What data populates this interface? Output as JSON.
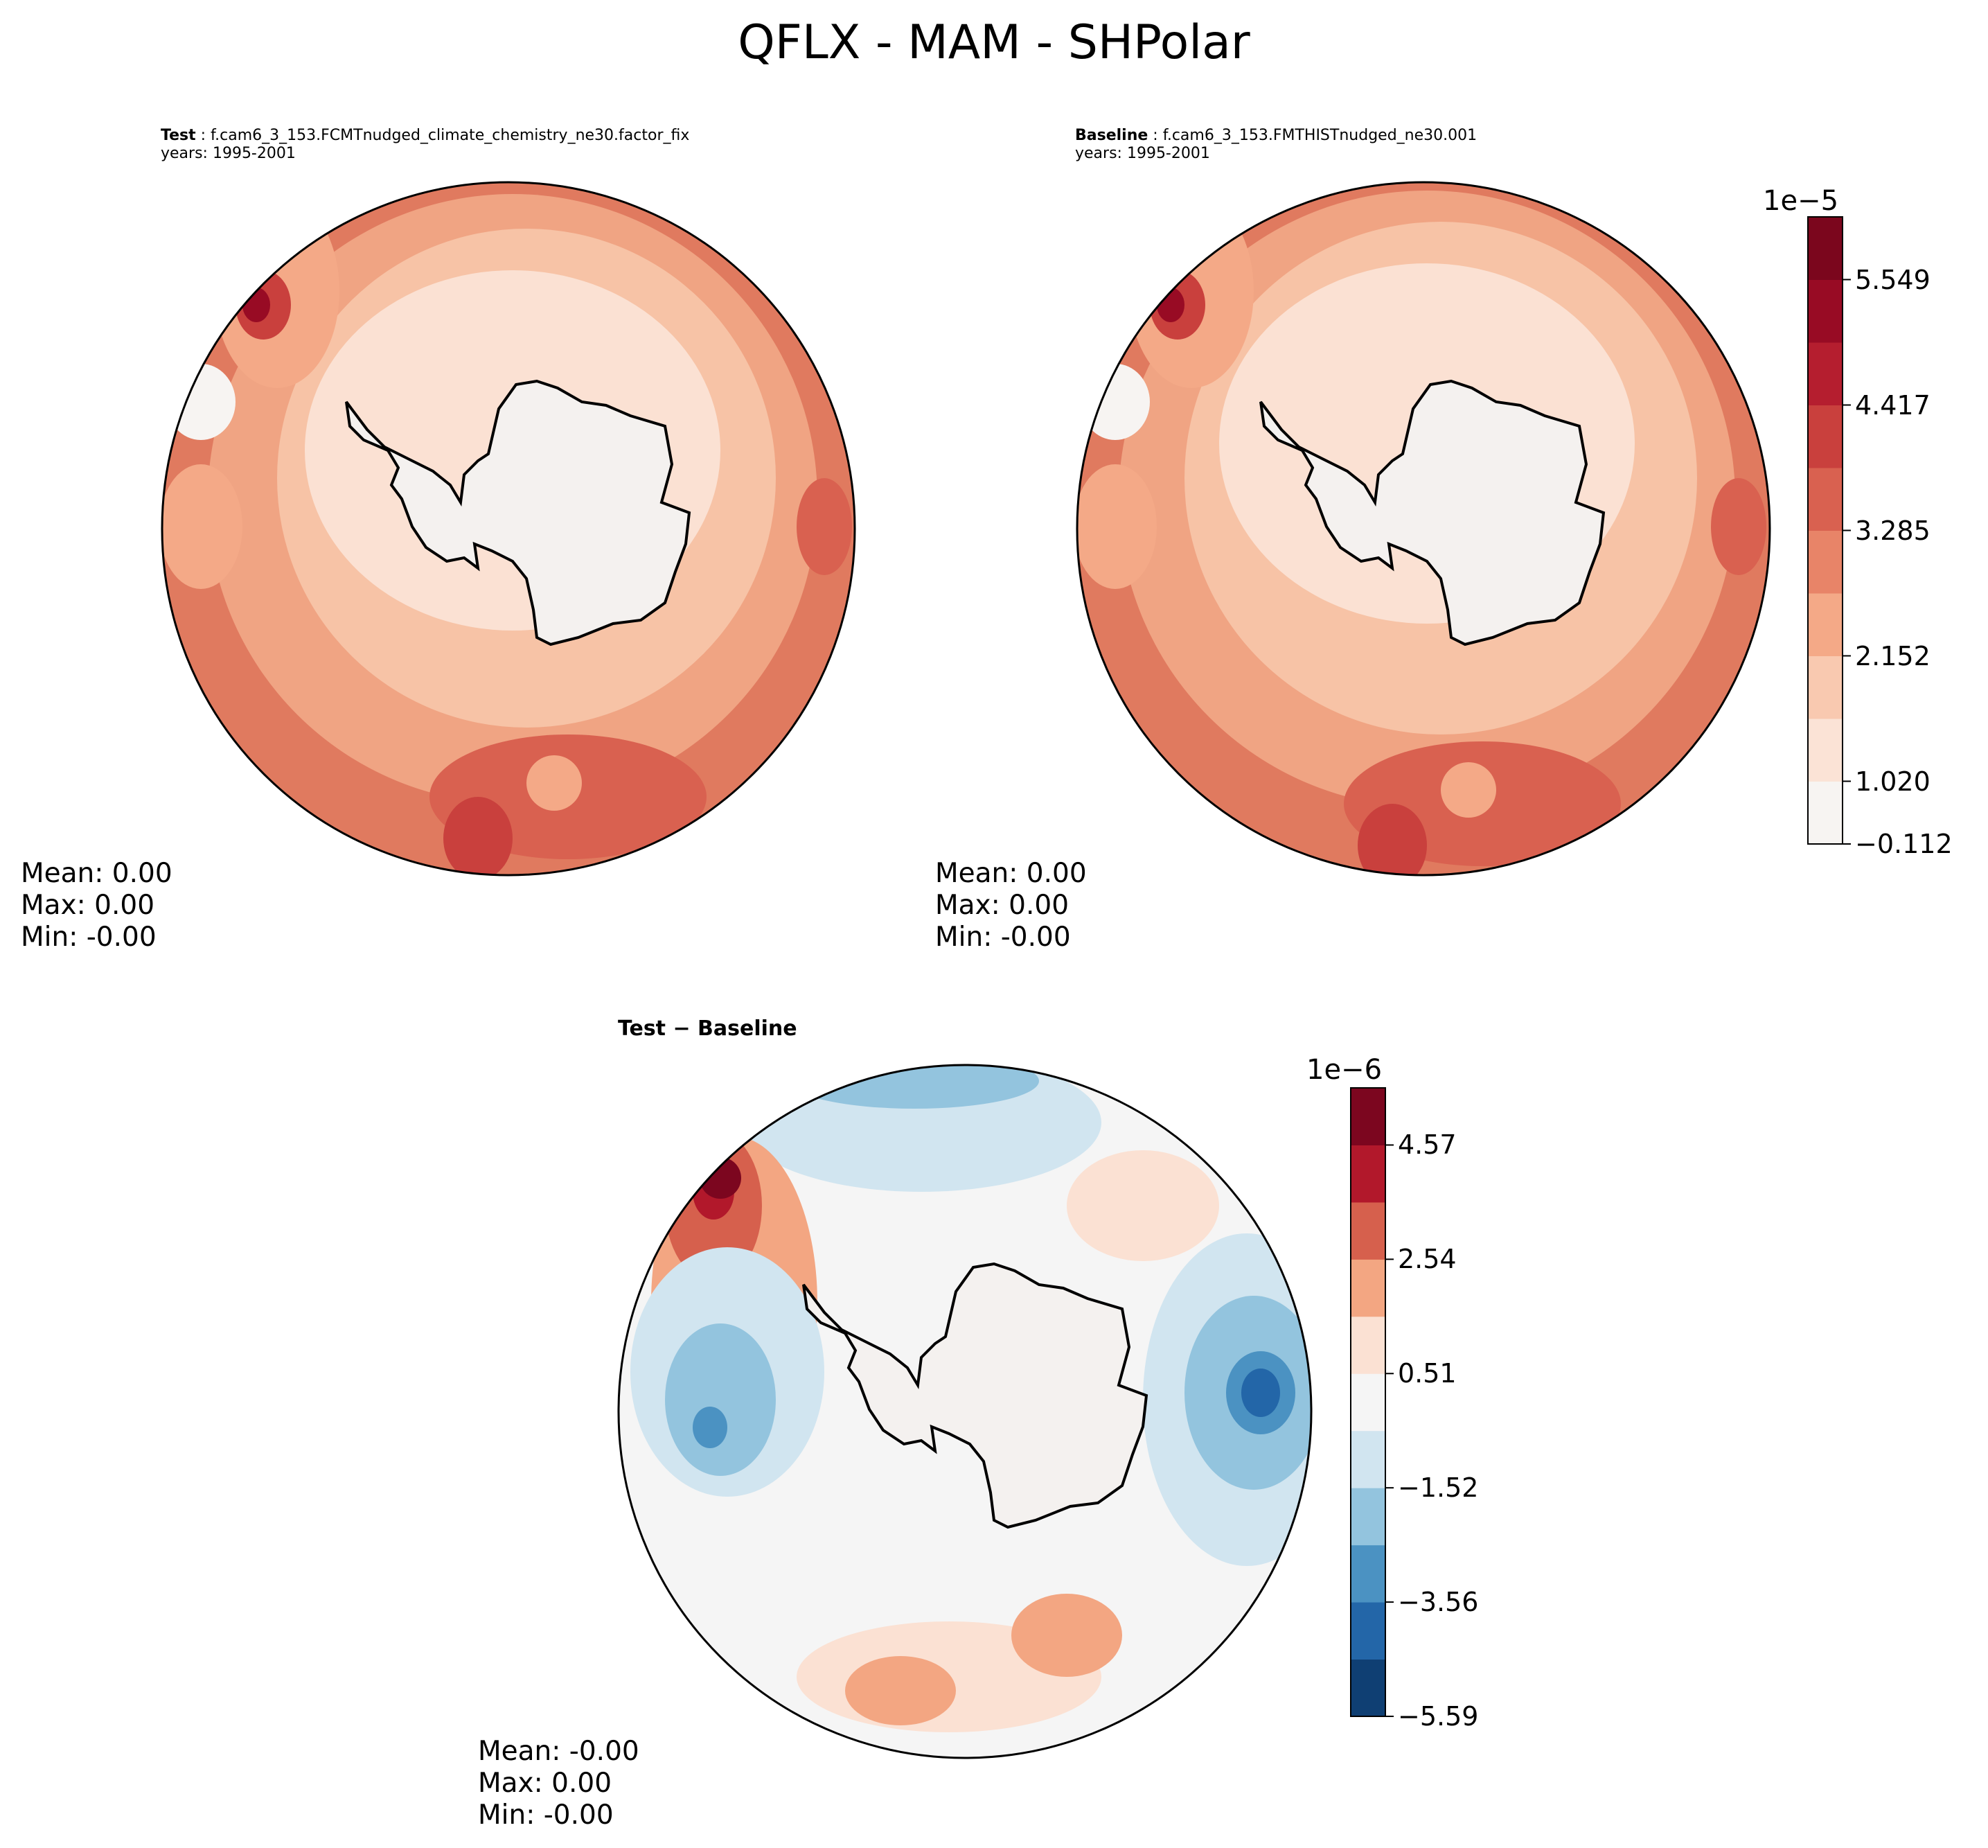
{
  "title": "QFLX - MAM - SHPolar",
  "panels": {
    "test": {
      "case_label": "Test",
      "case_name": "f.cam6_3_153.FCMTnudged_climate_chemistry_ne30.factor_fix",
      "years": "years: 1995-2001",
      "stats": {
        "mean": "Mean:  0.00",
        "max": "Max:  0.00",
        "min": "Min: -0.00"
      }
    },
    "baseline": {
      "case_label": "Baseline",
      "case_name": "f.cam6_3_153.FMTHISTnudged_ne30.001",
      "years": "years: 1995-2001",
      "stats": {
        "mean": "Mean:  0.00",
        "max": "Max:  0.00",
        "min": "Min: -0.00"
      }
    },
    "diff": {
      "title": "Test − Baseline",
      "stats": {
        "mean": "Mean: -0.00",
        "max": "Max:  0.00",
        "min": "Min: -0.00"
      }
    }
  },
  "colorbars": {
    "top": {
      "exponent": "1e−5",
      "tick_labels": [
        "5.549",
        "4.417",
        "3.285",
        "2.152",
        "1.020",
        "−0.112"
      ],
      "tick_values": [
        5.549,
        4.417,
        3.285,
        2.152,
        1.02,
        -0.112
      ],
      "colors": [
        "#f7f4f2",
        "#fbe3d6",
        "#f9c9b0",
        "#f4a987",
        "#e88468",
        "#d96150",
        "#c9403d",
        "#b51e2f",
        "#980b24",
        "#7b061d"
      ]
    },
    "bottom": {
      "exponent": "1e−6",
      "tick_labels": [
        "4.57",
        "2.54",
        "0.51",
        "−1.52",
        "−3.56",
        "−5.59"
      ],
      "tick_values": [
        4.57,
        2.54,
        0.51,
        -1.52,
        -3.56,
        -5.59
      ],
      "colors": [
        "#0f3f73",
        "#2366a8",
        "#4b92c2",
        "#93c4de",
        "#d1e5f0",
        "#f5f5f5",
        "#fbe1d3",
        "#f3a682",
        "#d6604d",
        "#b2182b",
        "#7c061f"
      ]
    }
  },
  "chart_data": [
    {
      "type": "heatmap",
      "title": "Test",
      "subtitle": "f.cam6_3_153.FCMTnudged_climate_chemistry_ne30.factor_fix",
      "projection": "south polar stereographic",
      "variable": "QFLX",
      "units_scale": "1e-5",
      "range": [
        -0.112,
        6.115
      ]
    },
    {
      "type": "heatmap",
      "title": "Baseline",
      "subtitle": "f.cam6_3_153.FMTHISTnudged_ne30.001",
      "projection": "south polar stereographic",
      "variable": "QFLX",
      "units_scale": "1e-5",
      "range": [
        -0.112,
        6.115
      ]
    },
    {
      "type": "heatmap",
      "title": "Test − Baseline",
      "projection": "south polar stereographic",
      "variable": "QFLX",
      "units_scale": "1e-6",
      "range": [
        -5.59,
        5.59
      ]
    }
  ]
}
